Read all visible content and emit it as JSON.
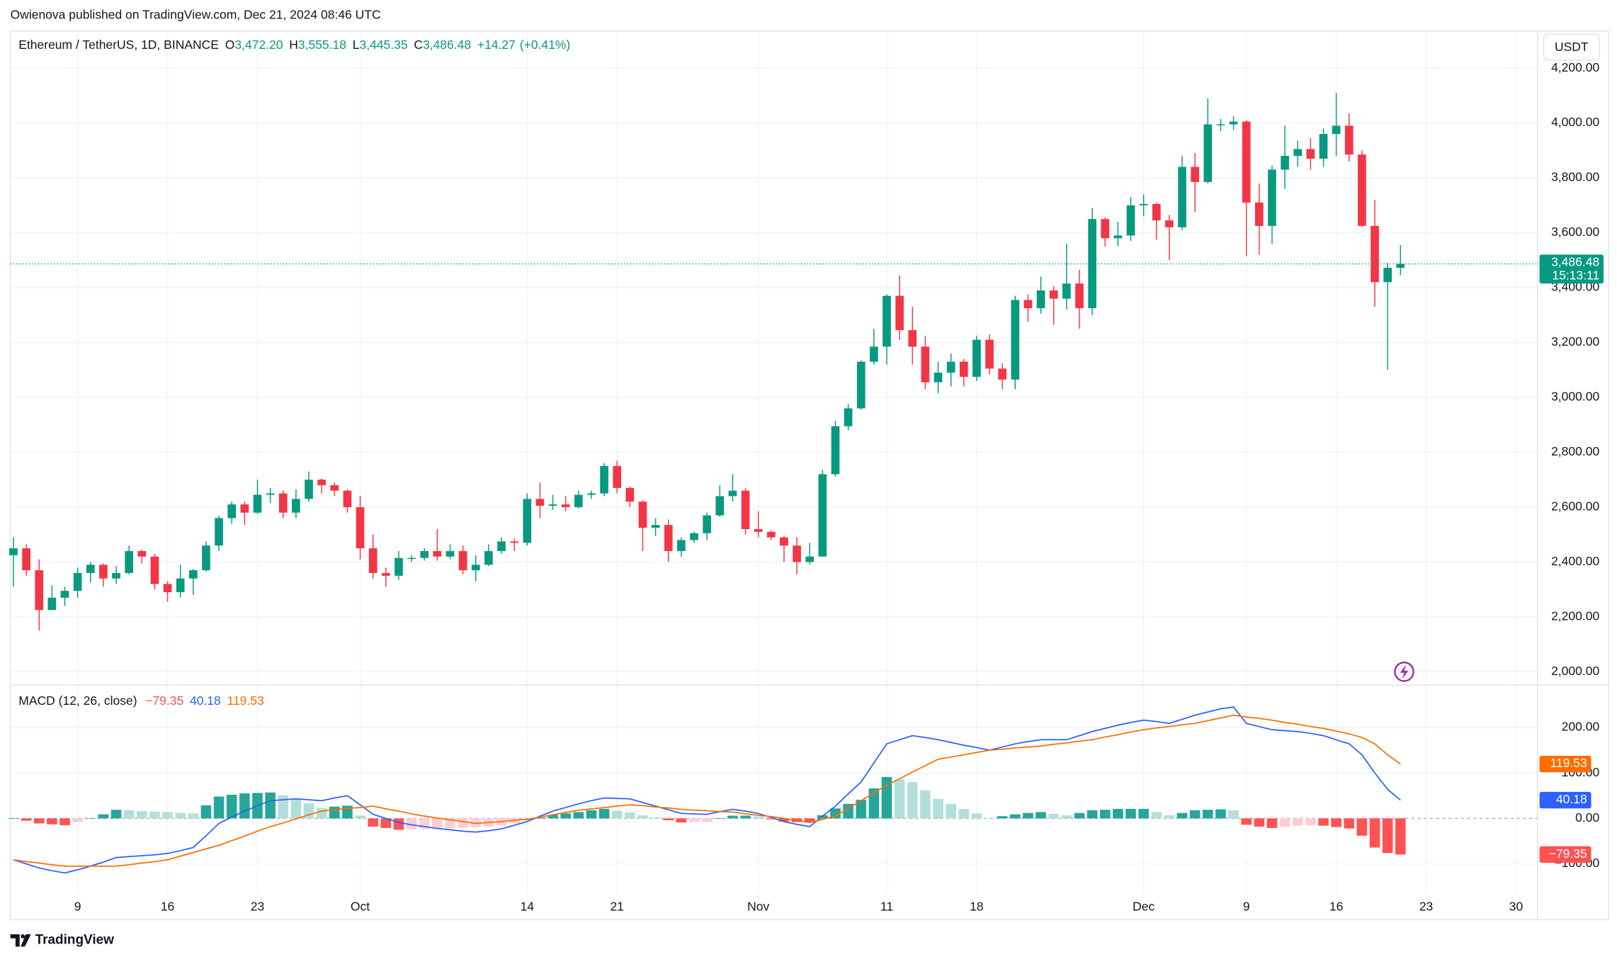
{
  "header": {
    "text": "Owienova published on TradingView.com, Dec 21, 2024 08:46 UTC"
  },
  "footer": {
    "brand": "TradingView"
  },
  "chart_data": [
    {
      "type": "candlestick",
      "title": "Ethereum / TetherUS, 1D, BINANCE",
      "ohlc": [
        {
          "key": "O",
          "value": 3472.2,
          "label": "3,472.20"
        },
        {
          "key": "H",
          "value": 3555.18,
          "label": "3,555.18"
        },
        {
          "key": "L",
          "value": 3445.35,
          "label": "3,445.35"
        },
        {
          "key": "C",
          "value": 3486.48,
          "label": "3,486.48"
        }
      ],
      "change": {
        "value": 14.27,
        "label": "+14.27"
      },
      "change_pct": {
        "value": 0.41,
        "label": "(+0.41%)"
      },
      "currency": "USDT",
      "last_price": {
        "value": 3486.48,
        "label": "3,486.48"
      },
      "countdown": "15:13:11",
      "up_color": "#089981",
      "down_color": "#f23645",
      "grid": true,
      "ylim": [
        1955,
        4335
      ],
      "yticks": [
        {
          "value": 2000,
          "label": "2,000.00"
        },
        {
          "value": 2200,
          "label": "2,200.00"
        },
        {
          "value": 2400,
          "label": "2,400.00"
        },
        {
          "value": 2600,
          "label": "2,600.00"
        },
        {
          "value": 2800,
          "label": "2,800.00"
        },
        {
          "value": 3000,
          "label": "3,000.00"
        },
        {
          "value": 3200,
          "label": "3,200.00"
        },
        {
          "value": 3400,
          "label": "3,400.00"
        },
        {
          "value": 3600,
          "label": "3,600.00"
        },
        {
          "value": 3800,
          "label": "3,800.00"
        },
        {
          "value": 4000,
          "label": "4,000.00"
        },
        {
          "value": 4200,
          "label": "4,200.00"
        }
      ],
      "categories": [
        null,
        null,
        null,
        null,
        null,
        "9",
        null,
        null,
        null,
        null,
        null,
        null,
        "16",
        null,
        null,
        null,
        null,
        null,
        null,
        "23",
        null,
        null,
        null,
        null,
        null,
        null,
        null,
        "Oct",
        null,
        null,
        null,
        null,
        null,
        null,
        null,
        null,
        null,
        null,
        null,
        null,
        "14",
        null,
        null,
        null,
        null,
        null,
        null,
        "21",
        null,
        null,
        null,
        null,
        null,
        null,
        null,
        null,
        null,
        null,
        "Nov",
        null,
        null,
        null,
        null,
        null,
        null,
        null,
        null,
        null,
        "11",
        null,
        null,
        null,
        null,
        null,
        null,
        "18",
        null,
        null,
        null,
        null,
        null,
        null,
        null,
        null,
        null,
        null,
        null,
        null,
        "Dec",
        null,
        null,
        null,
        null,
        null,
        null,
        null,
        "9",
        null,
        null,
        null,
        null,
        null,
        null,
        "16",
        null,
        null,
        null,
        null,
        null,
        null,
        "23",
        null,
        null,
        null,
        null,
        null,
        null,
        "30"
      ],
      "open": [
        2425,
        2450,
        2370,
        2225,
        2270,
        2295,
        2360,
        2390,
        2340,
        2360,
        2440,
        2420,
        2320,
        2290,
        2340,
        2370,
        2460,
        2560,
        2610,
        2580,
        2645,
        2650,
        2580,
        2630,
        2700,
        2680,
        2660,
        2600,
        2450,
        2360,
        2350,
        2415,
        2415,
        2440,
        2420,
        2440,
        2370,
        2390,
        2440,
        2475,
        2470,
        2630,
        2605,
        2610,
        2600,
        2645,
        2650,
        2750,
        2670,
        2620,
        2525,
        2535,
        2440,
        2480,
        2505,
        2570,
        2640,
        2660,
        2520,
        2510,
        2490,
        2460,
        2400,
        2420,
        2720,
        2895,
        2960,
        3130,
        3185,
        3370,
        3245,
        3185,
        3055,
        3090,
        3130,
        3075,
        3210,
        3105,
        3065,
        3355,
        3325,
        3390,
        3360,
        3415,
        3325,
        3650,
        3580,
        3590,
        3700,
        3705,
        3645,
        3620,
        3840,
        3785,
        3995,
        3995,
        4005,
        3710,
        3625,
        3830,
        3880,
        3905,
        3870,
        3960,
        3990,
        3885,
        3625,
        3420,
        3472.2,
        null,
        null,
        null,
        null,
        null,
        null,
        null,
        null,
        null
      ],
      "high": [
        2490,
        2465,
        2410,
        2315,
        2310,
        2380,
        2400,
        2395,
        2385,
        2460,
        2445,
        2430,
        2330,
        2390,
        2375,
        2475,
        2570,
        2620,
        2620,
        2700,
        2670,
        2660,
        2665,
        2730,
        2705,
        2690,
        2665,
        2640,
        2500,
        2380,
        2440,
        2425,
        2450,
        2520,
        2465,
        2460,
        2425,
        2465,
        2490,
        2485,
        2650,
        2690,
        2645,
        2640,
        2660,
        2660,
        2760,
        2770,
        2675,
        2625,
        2560,
        2555,
        2490,
        2510,
        2580,
        2680,
        2720,
        2670,
        2585,
        2515,
        2495,
        2490,
        2470,
        2735,
        2915,
        2975,
        3135,
        3250,
        3375,
        3445,
        3330,
        3225,
        3130,
        3160,
        3140,
        3225,
        3230,
        3125,
        3370,
        3375,
        3440,
        3405,
        3560,
        3465,
        3690,
        3655,
        3640,
        3730,
        3740,
        3710,
        3665,
        3880,
        3890,
        4090,
        4015,
        4025,
        4010,
        3780,
        3845,
        3990,
        3935,
        3945,
        3980,
        4110,
        4035,
        3900,
        3720,
        3490,
        3555.18,
        null,
        null,
        null,
        null,
        null,
        null,
        null,
        null,
        null
      ],
      "low": [
        2310,
        2350,
        2150,
        2225,
        2240,
        2270,
        2325,
        2310,
        2320,
        2355,
        2395,
        2300,
        2255,
        2270,
        2280,
        2365,
        2440,
        2540,
        2535,
        2575,
        2615,
        2560,
        2560,
        2620,
        2650,
        2640,
        2580,
        2410,
        2340,
        2310,
        2335,
        2400,
        2405,
        2405,
        2410,
        2355,
        2330,
        2385,
        2430,
        2440,
        2460,
        2560,
        2590,
        2585,
        2595,
        2630,
        2640,
        2650,
        2600,
        2440,
        2495,
        2400,
        2420,
        2470,
        2480,
        2565,
        2620,
        2500,
        2490,
        2480,
        2400,
        2355,
        2390,
        2420,
        2710,
        2880,
        2955,
        3120,
        3120,
        3210,
        3120,
        3030,
        3015,
        3040,
        3040,
        3060,
        3085,
        3030,
        3030,
        3275,
        3305,
        3265,
        3320,
        3250,
        3300,
        3550,
        3550,
        3570,
        3660,
        3575,
        3500,
        3610,
        3675,
        3780,
        3970,
        3975,
        3515,
        3520,
        3560,
        3760,
        3840,
        3830,
        3840,
        3880,
        3860,
        3620,
        3330,
        3100,
        3445.35,
        null,
        null,
        null,
        null,
        null,
        null,
        null,
        null,
        null
      ],
      "close": [
        2450,
        2370,
        2225,
        2270,
        2295,
        2360,
        2390,
        2340,
        2360,
        2440,
        2420,
        2320,
        2290,
        2340,
        2370,
        2460,
        2560,
        2610,
        2580,
        2645,
        2650,
        2580,
        2630,
        2700,
        2680,
        2660,
        2600,
        2450,
        2360,
        2350,
        2415,
        2415,
        2440,
        2420,
        2440,
        2370,
        2390,
        2440,
        2475,
        2470,
        2630,
        2605,
        2610,
        2600,
        2645,
        2650,
        2750,
        2670,
        2620,
        2525,
        2535,
        2440,
        2480,
        2505,
        2570,
        2640,
        2660,
        2520,
        2510,
        2490,
        2460,
        2400,
        2420,
        2720,
        2895,
        2960,
        3130,
        3185,
        3370,
        3245,
        3185,
        3055,
        3090,
        3130,
        3075,
        3210,
        3105,
        3065,
        3355,
        3325,
        3390,
        3360,
        3415,
        3325,
        3650,
        3580,
        3590,
        3700,
        3705,
        3645,
        3620,
        3840,
        3785,
        3995,
        3995,
        4005,
        3710,
        3625,
        3830,
        3880,
        3905,
        3870,
        3960,
        3990,
        3885,
        3625,
        3420,
        3472.2,
        3486.48,
        null,
        null,
        null,
        null,
        null,
        null,
        null,
        null,
        null
      ]
    },
    {
      "type": "macd",
      "title": "MACD (12, 26, close)",
      "ylim": [
        -166,
        293
      ],
      "yticks": [
        {
          "value": 200,
          "label": "200.00"
        },
        {
          "value": 100,
          "label": "100.00"
        },
        {
          "value": 0,
          "label": "0.00"
        },
        {
          "value": -100,
          "label": "−100.00"
        }
      ],
      "histogram": {
        "colors": {
          "grow_above": "#26a69a",
          "fall_above": "#b2dfdb",
          "grow_below": "#ff5252",
          "fall_below": "#ffcdd2"
        },
        "last_label": "−79.35",
        "values": [
          0,
          -5,
          -11,
          -13,
          -15,
          -8,
          0,
          9,
          19,
          18,
          16,
          15,
          14,
          12,
          11,
          29,
          48,
          52,
          55,
          56,
          57,
          51,
          44,
          33,
          23,
          26,
          28,
          6,
          -18,
          -21,
          -25,
          -24,
          -23,
          -23,
          -22,
          -21,
          -19,
          -18,
          -16,
          -11,
          -5,
          2,
          8,
          11,
          14,
          18,
          21,
          17,
          13,
          7,
          2,
          -4,
          -9,
          -8,
          -8,
          0,
          6,
          6,
          4,
          -2,
          -7,
          -8,
          -9,
          7,
          22,
          32,
          41,
          66,
          91,
          86,
          80,
          62,
          43,
          32,
          21,
          11,
          0,
          5,
          9,
          12,
          14,
          10,
          7,
          12,
          18,
          19,
          21,
          21,
          21,
          14,
          7,
          12,
          18,
          19,
          20,
          18,
          -14,
          -18,
          -21,
          -18,
          -16,
          -15,
          -16,
          -19,
          -22,
          -38,
          -64,
          -76,
          -79.35,
          null,
          null,
          null,
          null,
          null,
          null,
          null,
          null,
          null
        ]
      },
      "macd": {
        "color": "#2962ff",
        "values": [
          -91,
          -100,
          -109,
          -115,
          -120,
          -113,
          -105,
          -96,
          -86,
          -84,
          -82,
          -80,
          -77,
          -71,
          -64,
          -38,
          -11,
          3,
          16,
          28,
          39,
          41,
          43,
          41,
          39,
          45,
          50,
          30,
          9,
          0,
          -9,
          -14,
          -18,
          -22,
          -25,
          -28,
          -30,
          -27,
          -23,
          -15,
          -7,
          5,
          16,
          24,
          32,
          39,
          45,
          44,
          43,
          35,
          27,
          19,
          11,
          10,
          9,
          15,
          20,
          16,
          11,
          2,
          -7,
          -13,
          -18,
          5,
          27,
          54,
          80,
          122,
          164,
          173,
          182,
          178,
          173,
          167,
          161,
          156,
          150,
          157,
          164,
          169,
          173,
          173,
          173,
          182,
          191,
          198,
          205,
          211,
          216,
          213,
          209,
          218,
          227,
          234,
          241,
          245,
          209,
          202,
          195,
          193,
          191,
          187,
          182,
          173,
          164,
          140,
          100,
          64,
          40.18,
          null,
          null,
          null,
          null,
          null,
          null,
          null,
          null,
          null
        ]
      },
      "signal": {
        "color": "#ff6d00",
        "values": [
          -91,
          -95,
          -98,
          -102,
          -105,
          -105,
          -105,
          -105,
          -105,
          -102,
          -98,
          -95,
          -91,
          -83,
          -75,
          -67,
          -59,
          -49,
          -39,
          -28,
          -18,
          -10,
          -1,
          8,
          16,
          19,
          22,
          24,
          27,
          21,
          16,
          10,
          5,
          1,
          -3,
          -7,
          -11,
          -9,
          -7,
          -4,
          -2,
          3,
          8,
          13,
          18,
          21,
          24,
          27,
          30,
          28,
          25,
          23,
          20,
          18,
          17,
          15,
          14,
          10,
          7,
          4,
          0,
          -5,
          -9,
          -2,
          5,
          22,
          39,
          56,
          73,
          87,
          102,
          116,
          130,
          135,
          140,
          145,
          150,
          152,
          155,
          157,
          159,
          163,
          166,
          170,
          173,
          179,
          184,
          190,
          195,
          199,
          202,
          206,
          209,
          215,
          221,
          227,
          223,
          220,
          216,
          211,
          207,
          202,
          198,
          192,
          186,
          178,
          164,
          140,
          119.53,
          null,
          null,
          null,
          null,
          null,
          null,
          null,
          null,
          null
        ]
      }
    }
  ]
}
